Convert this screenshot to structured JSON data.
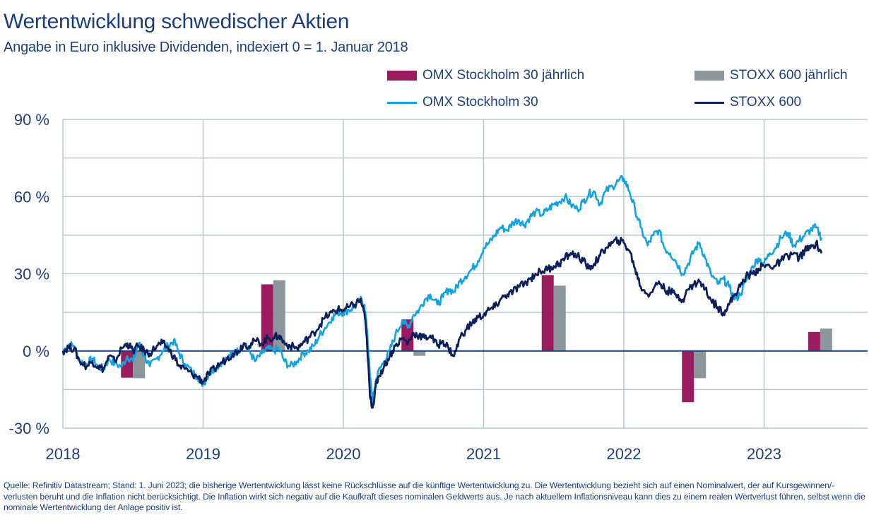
{
  "title": "Wertentwicklung schwedischer Aktien",
  "subtitle": "Angabe in Euro inklusive Dividenden, indexiert 0 = 1. Januar 2018",
  "legend": [
    {
      "label": "OMX Stockholm 30 jährlich",
      "kind": "bar",
      "color": "#9b1c5e"
    },
    {
      "label": "STOXX 600 jährlich",
      "kind": "bar",
      "color": "#8c979b"
    },
    {
      "label": "OMX Stockholm 30",
      "kind": "line",
      "color": "#14a3df"
    },
    {
      "label": "STOXX 600",
      "kind": "line",
      "color": "#0d1f5c"
    }
  ],
  "footnote": "Quelle: Refinitiv Datastream; Stand: 1. Juni 2023; die bisherige Wertentwicklung lässt keine Rückschlüsse auf die künftige Wertentwicklung zu. Die Wertentwicklung bezieht sich auf einen Nominalwert, der auf Kursgewinnen/-verlusten beruht und die Inflation nicht berücksichtigt. Die Inflation wirkt sich negativ auf die Kaufkraft dieses nominalen Geldwerts aus. Je nach aktuellem Inflationsniveau kann dies zu einem realen Wertverlust führen, selbst wenn die nominale Wertentwicklung der Anlage positiv ist.",
  "colors": {
    "text": "#1c3f7c",
    "grid": "#b7c9d0",
    "zero_line": "#1c3f7c"
  },
  "chart_data": {
    "type": "line",
    "title": "Wertentwicklung schwedischer Aktien",
    "subtitle": "Angabe in Euro inklusive Dividenden, indexiert 0 = 1. Januar 2018",
    "xlabel": "",
    "ylabel": "",
    "xlim": [
      2018.0,
      2023.75
    ],
    "ylim": [
      -30,
      90
    ],
    "x_ticks": [
      2018,
      2019,
      2020,
      2021,
      2022,
      2023
    ],
    "x_tick_labels": [
      "2018",
      "2019",
      "2020",
      "2021",
      "2022",
      "2023"
    ],
    "y_ticks": [
      -30,
      0,
      30,
      60,
      90
    ],
    "y_tick_labels": [
      "-30 %",
      "0 %",
      "30 %",
      "60 %",
      "90 %"
    ],
    "y_gridlines": [
      -30,
      -15,
      0,
      15,
      30,
      45,
      60,
      75,
      90
    ],
    "grid": true,
    "legend_position": "top-right",
    "bars": {
      "type": "bar",
      "categories": [
        "2018",
        "2019",
        "2020",
        "2021",
        "2022",
        "2023"
      ],
      "x_center": [
        2018.5,
        2019.5,
        2020.5,
        2021.5,
        2022.5,
        2023.4
      ],
      "series": [
        {
          "name": "OMX Stockholm 30 jährlich",
          "color": "#9b1c5e",
          "values": [
            -10.4,
            25.9,
            12.3,
            29.5,
            -19.9,
            7.4
          ]
        },
        {
          "name": "STOXX 600 jährlich",
          "color": "#8c979b",
          "values": [
            -10.6,
            27.5,
            -1.9,
            25.4,
            -10.6,
            8.7
          ]
        }
      ]
    },
    "lines": {
      "type": "line",
      "x": [
        2018.0,
        2018.04,
        2018.08,
        2018.12,
        2018.17,
        2018.21,
        2018.25,
        2018.29,
        2018.33,
        2018.37,
        2018.42,
        2018.46,
        2018.5,
        2018.54,
        2018.58,
        2018.62,
        2018.67,
        2018.71,
        2018.75,
        2018.79,
        2018.83,
        2018.87,
        2018.92,
        2018.96,
        2019.0,
        2019.04,
        2019.08,
        2019.12,
        2019.17,
        2019.21,
        2019.25,
        2019.29,
        2019.33,
        2019.37,
        2019.42,
        2019.46,
        2019.5,
        2019.54,
        2019.58,
        2019.62,
        2019.67,
        2019.71,
        2019.75,
        2019.79,
        2019.83,
        2019.87,
        2019.92,
        2019.96,
        2020.0,
        2020.04,
        2020.08,
        2020.12,
        2020.15,
        2020.17,
        2020.19,
        2020.21,
        2020.23,
        2020.25,
        2020.29,
        2020.33,
        2020.37,
        2020.42,
        2020.46,
        2020.5,
        2020.54,
        2020.58,
        2020.62,
        2020.67,
        2020.71,
        2020.75,
        2020.79,
        2020.83,
        2020.87,
        2020.92,
        2020.96,
        2021.0,
        2021.04,
        2021.08,
        2021.12,
        2021.17,
        2021.21,
        2021.25,
        2021.29,
        2021.33,
        2021.37,
        2021.42,
        2021.46,
        2021.5,
        2021.54,
        2021.58,
        2021.62,
        2021.67,
        2021.71,
        2021.75,
        2021.79,
        2021.83,
        2021.87,
        2021.92,
        2021.96,
        2022.0,
        2022.04,
        2022.08,
        2022.12,
        2022.17,
        2022.21,
        2022.25,
        2022.29,
        2022.33,
        2022.37,
        2022.42,
        2022.46,
        2022.5,
        2022.54,
        2022.58,
        2022.62,
        2022.67,
        2022.71,
        2022.75,
        2022.79,
        2022.83,
        2022.87,
        2022.92,
        2022.96,
        2023.0,
        2023.04,
        2023.08,
        2023.12,
        2023.17,
        2023.21,
        2023.25,
        2023.29,
        2023.33,
        2023.37,
        2023.41
      ],
      "series": [
        {
          "name": "OMX Stockholm 30",
          "color": "#14a3df",
          "values": [
            0,
            2.5,
            2,
            -4,
            -5,
            -3,
            -6,
            -7,
            -3,
            -5,
            -6,
            -2,
            -4,
            3,
            -2,
            -6,
            -3,
            0,
            2,
            4,
            -1,
            -5,
            -8,
            -10,
            -13,
            -9,
            -7,
            -5,
            -3,
            -1,
            0,
            3,
            0,
            -4,
            -1,
            1,
            0,
            1,
            -4,
            -6,
            -4,
            -1,
            0,
            2,
            6,
            9,
            13,
            15,
            15,
            16,
            17,
            20,
            18,
            8,
            -10,
            -20,
            -12,
            -8,
            -4,
            0,
            6,
            12,
            9,
            14,
            16,
            20,
            22,
            18,
            21,
            24,
            23,
            27,
            29,
            32,
            35,
            40,
            42,
            45,
            48,
            47,
            50,
            51,
            49,
            52,
            54,
            53,
            55,
            57,
            58,
            60,
            57,
            55,
            58,
            61,
            62,
            57,
            62,
            64,
            66,
            67,
            62,
            55,
            48,
            41,
            45,
            47,
            40,
            38,
            35,
            30,
            34,
            39,
            42,
            36,
            30,
            26,
            28,
            25,
            20,
            22,
            27,
            33,
            36,
            34,
            38,
            40,
            44,
            46,
            41,
            43,
            45,
            47,
            48,
            44
          ]
        },
        {
          "name": "STOXX 600",
          "color": "#0d1f5c",
          "values": [
            0,
            1.5,
            1,
            -4,
            -6,
            -4,
            -6,
            -7,
            -2,
            -4,
            1,
            3,
            0,
            2,
            0,
            -1,
            2,
            3,
            1,
            -2,
            -6,
            -7,
            -9,
            -10,
            -12,
            -9,
            -7,
            -5,
            -3,
            -1,
            0,
            3,
            2,
            4,
            3,
            5,
            5,
            6,
            3,
            2,
            1,
            3,
            5,
            7,
            10,
            13,
            15,
            16,
            16,
            17,
            18,
            20,
            15,
            2,
            -18,
            -22,
            -14,
            -10,
            -6,
            -2,
            2,
            5,
            3,
            7,
            6,
            5,
            6,
            2,
            4,
            1,
            -2,
            5,
            8,
            11,
            13,
            14,
            16,
            17,
            20,
            22,
            23,
            25,
            26,
            28,
            30,
            31,
            32,
            33,
            34,
            36,
            38,
            37,
            35,
            32,
            34,
            37,
            40,
            42,
            43,
            42,
            39,
            32,
            25,
            22,
            24,
            27,
            24,
            23,
            22,
            20,
            24,
            26,
            27,
            24,
            20,
            17,
            15,
            18,
            22,
            25,
            29,
            30,
            32,
            33,
            33,
            33,
            35,
            37,
            38,
            36,
            39,
            40,
            42,
            38
          ]
        }
      ]
    }
  }
}
